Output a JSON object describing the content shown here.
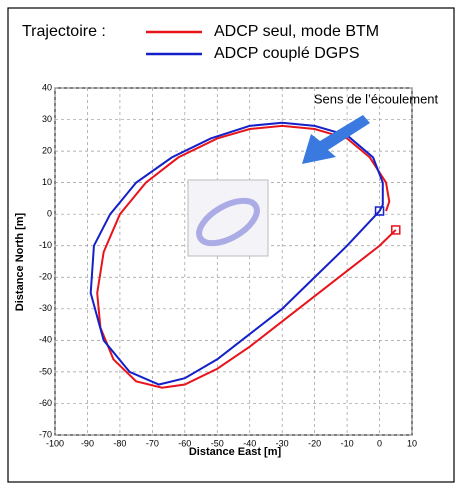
{
  "chart_data": {
    "type": "line",
    "legend_title": "Trajectoire :",
    "annotation": "Sens de l’écoulement",
    "xlabel": "Distance East [m]",
    "ylabel": "Distance North [m]",
    "xlim": [
      -100,
      10
    ],
    "ylim": [
      -70,
      40
    ],
    "xticks": [
      -100,
      -90,
      -80,
      -70,
      -60,
      -50,
      -40,
      -30,
      -20,
      -10,
      0,
      10
    ],
    "yticks": [
      40,
      30,
      20,
      10,
      0,
      -10,
      -20,
      -30,
      -40,
      -50,
      -60,
      -70
    ],
    "grid": true,
    "series": [
      {
        "name": "ADCP seul, mode BTM",
        "color": "#e8141c",
        "x": [
          5,
          0,
          -10,
          -20,
          -30,
          -40,
          -50,
          -60,
          -67,
          -75,
          -82,
          -86,
          -87,
          -85,
          -80,
          -72,
          -62,
          -50,
          -40,
          -30,
          -20,
          -10,
          -3,
          2,
          3,
          2
        ],
        "values": [
          -5,
          -10,
          -18,
          -26,
          -34,
          -42,
          -49,
          -54,
          -55,
          -53,
          -46,
          -36,
          -25,
          -12,
          0,
          10,
          18,
          24,
          27,
          28,
          27,
          24,
          18,
          10,
          4,
          1
        ]
      },
      {
        "name": "ADCP couplé DGPS",
        "color": "#1420c8",
        "x": [
          0,
          -10,
          -20,
          -30,
          -40,
          -50,
          -60,
          -68,
          -77,
          -85,
          -89,
          -88,
          -83,
          -75,
          -64,
          -52,
          -40,
          -30,
          -20,
          -10,
          -2,
          1,
          1,
          0
        ],
        "values": [
          1,
          -10,
          -20,
          -30,
          -38,
          -46,
          -52,
          -54,
          -50,
          -40,
          -25,
          -10,
          0,
          10,
          18,
          24,
          28,
          29,
          28,
          25,
          18,
          10,
          3,
          1
        ]
      }
    ]
  }
}
